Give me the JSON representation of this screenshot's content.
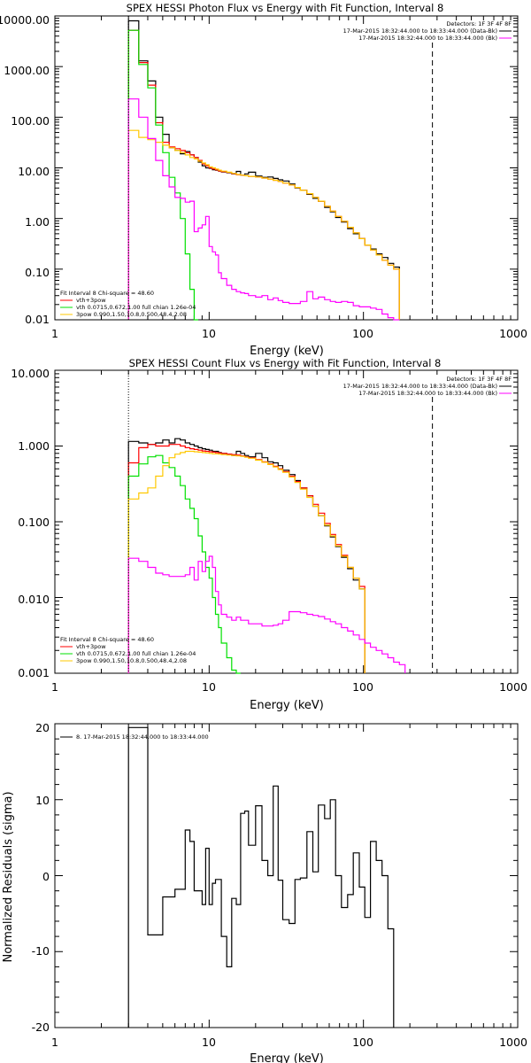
{
  "chart_data": [
    {
      "type": "line",
      "title": "SPEX HESSI Photon Flux vs Energy with Fit Function, Interval 8",
      "xlabel": "Energy (keV)",
      "ylabel": "",
      "xscale": "log",
      "yscale": "log",
      "xlim": [
        1,
        1000
      ],
      "ylim": [
        0.01,
        10000
      ],
      "xticks": [
        "1",
        "10",
        "100",
        "1000"
      ],
      "yticks": [
        "0.01",
        "0.10",
        "1.00",
        "10.00",
        "100.00",
        "1000.00",
        "10000.00"
      ],
      "legend_top_right": [
        "Detectors: 1F 3F 4F 8F",
        "17-Mar-2015 18:32:44.000 to 18:33:44.000 (Data-Bk)",
        "17-Mar-2015 18:32:44.000 to 18:33:44.000 (Bk)"
      ],
      "legend_bottom_left": [
        "Fit Interval 8   Chi-square = 48.60",
        "vth+3pow",
        "vth 0.0715,0.672,1.00  full chian 1.26e-04",
        "3pow 0.990,1.50,10.8,0.500,48.4,2.08"
      ],
      "marker_lines": {
        "x_dotted": 3,
        "x_dashed": 280
      },
      "bin_edges": [
        3,
        3.5,
        4,
        4.5,
        5,
        5.5,
        6,
        6.5,
        7,
        7.5,
        8,
        8.5,
        9,
        9.5,
        10,
        10.5,
        11,
        11.5,
        12,
        13,
        14,
        15,
        16,
        17,
        18,
        20,
        22,
        24,
        26,
        28,
        30,
        33,
        36,
        39,
        43,
        47,
        51,
        56,
        61,
        66,
        72,
        79,
        86,
        94,
        102,
        111,
        121,
        132,
        144,
        157,
        171,
        186,
        202,
        220,
        240,
        262,
        280
      ],
      "series": [
        {
          "color": "#000000",
          "values": [
            8000,
            1300,
            520,
            100,
            46,
            25,
            22,
            19,
            21,
            18,
            16,
            13,
            11,
            10,
            9.8,
            9.2,
            9.0,
            8.6,
            8.3,
            8.0,
            7.6,
            8.5,
            7.2,
            7.6,
            8.2,
            6.9,
            6.5,
            6.6,
            6.2,
            5.8,
            5.5,
            4.8,
            4.0,
            3.6,
            3.0,
            2.5,
            2.2,
            1.65,
            1.35,
            1.05,
            0.85,
            0.63,
            0.5,
            0.4,
            0.3,
            0.25,
            0.2,
            0.17,
            0.13,
            0.11
          ]
        },
        {
          "color": "#ff0000",
          "values": [
            5200,
            1200,
            430,
            78,
            32,
            26,
            24,
            22,
            20,
            18,
            16,
            14,
            12,
            11,
            10,
            9.5,
            9.1,
            8.7,
            8.4,
            8.1,
            7.7,
            7.3,
            7.2,
            7.0,
            6.8,
            6.6,
            6.3,
            6.0,
            5.7,
            5.4,
            5.0,
            4.6,
            4.1,
            3.6,
            3.1,
            2.6,
            2.2,
            1.75,
            1.4,
            1.1,
            0.88,
            0.67,
            0.52,
            0.4,
            0.3,
            0.24,
            0.19,
            0.15,
            0.12,
            0.1
          ]
        },
        {
          "color": "#00e000",
          "values": [
            5200,
            1100,
            380,
            70,
            20,
            6.5,
            3.2,
            1.0,
            0.2,
            0.04,
            0.01
          ]
        },
        {
          "color": "#ffc800",
          "values": [
            55,
            40,
            36,
            32,
            28,
            25,
            22,
            20,
            18,
            16,
            15,
            13.5,
            12.5,
            11.5,
            10.5,
            10,
            9.5,
            9.0,
            8.6,
            8.2,
            7.8,
            7.4,
            7.2,
            7.0,
            6.8,
            6.6,
            6.3,
            6.0,
            5.7,
            5.4,
            5.0,
            4.6,
            4.1,
            3.6,
            3.1,
            2.6,
            2.2,
            1.75,
            1.4,
            1.1,
            0.88,
            0.67,
            0.52,
            0.4,
            0.3,
            0.24,
            0.19,
            0.15,
            0.12,
            0.1
          ]
        },
        {
          "color": "#ff00ff",
          "values": [
            230,
            100,
            38,
            14,
            7,
            4.2,
            2.6,
            2.5,
            2.1,
            2.2,
            0.55,
            0.65,
            0.75,
            1.1,
            0.28,
            0.22,
            0.19,
            0.085,
            0.065,
            0.048,
            0.04,
            0.036,
            0.034,
            0.033,
            0.03,
            0.028,
            0.03,
            0.025,
            0.027,
            0.024,
            0.022,
            0.021,
            0.021,
            0.023,
            0.036,
            0.026,
            0.028,
            0.025,
            0.023,
            0.022,
            0.023,
            0.022,
            0.019,
            0.018,
            0.018,
            0.017,
            0.016,
            0.013,
            0.011,
            0.01
          ]
        }
      ]
    },
    {
      "type": "line",
      "title": "SPEX HESSI Count Flux vs Energy with Fit Function, Interval 8",
      "xlabel": "Energy (keV)",
      "ylabel": "",
      "xscale": "log",
      "yscale": "log",
      "xlim": [
        1,
        1000
      ],
      "ylim": [
        0.001,
        10
      ],
      "xticks": [
        "1",
        "10",
        "100",
        "1000"
      ],
      "yticks": [
        "0.001",
        "0.010",
        "0.100",
        "1.000",
        "10.000"
      ],
      "legend_top_right": [
        "Detectors: 1F 3F 4F 8F",
        "17-Mar-2015 18:32:44.000 to 18:33:44.000 (Data-Bk)",
        "17-Mar-2015 18:32:44.000 to 18:33:44.000 (Bk)"
      ],
      "legend_bottom_left": [
        "Fit Interval 8   Chi-square = 48.60",
        "vth+3pow",
        "vth 0.0715,0.672,1.00  full chian 1.26e-04",
        "3pow 0.990,1.50,10.8,0.500,48.4,2.08"
      ],
      "marker_lines": {
        "x_dotted": 3,
        "x_dashed": 280
      },
      "bin_edges": [
        3,
        3.5,
        4,
        4.5,
        5,
        5.5,
        6,
        6.5,
        7,
        7.5,
        8,
        8.5,
        9,
        9.5,
        10,
        10.5,
        11,
        11.5,
        12,
        13,
        14,
        15,
        16,
        17,
        18,
        20,
        22,
        24,
        26,
        28,
        30,
        33,
        36,
        39,
        43,
        47,
        51,
        56,
        61,
        66,
        72,
        79,
        86,
        94,
        102,
        111,
        121,
        132,
        144,
        157,
        171,
        186,
        202,
        220,
        240,
        262,
        280
      ],
      "series": [
        {
          "color": "#000000",
          "values": [
            1.15,
            1.1,
            1.05,
            1.1,
            1.2,
            1.1,
            1.25,
            1.2,
            1.1,
            1.05,
            1.0,
            0.95,
            0.92,
            0.9,
            0.88,
            0.85,
            0.85,
            0.82,
            0.8,
            0.78,
            0.75,
            0.85,
            0.8,
            0.75,
            0.72,
            0.8,
            0.7,
            0.62,
            0.6,
            0.55,
            0.48,
            0.42,
            0.35,
            0.28,
            0.22,
            0.16,
            0.12,
            0.088,
            0.063,
            0.047,
            0.034,
            0.024,
            0.017,
            0.013
          ]
        },
        {
          "color": "#ff0000",
          "values": [
            0.6,
            0.95,
            1.05,
            1.0,
            1.0,
            1.05,
            1.05,
            1.0,
            0.95,
            0.92,
            0.9,
            0.88,
            0.86,
            0.85,
            0.84,
            0.83,
            0.82,
            0.81,
            0.8,
            0.78,
            0.77,
            0.76,
            0.74,
            0.72,
            0.7,
            0.66,
            0.62,
            0.58,
            0.54,
            0.5,
            0.46,
            0.4,
            0.34,
            0.28,
            0.22,
            0.17,
            0.13,
            0.095,
            0.068,
            0.05,
            0.036,
            0.025,
            0.018,
            0.014
          ]
        },
        {
          "color": "#00e000",
          "values": [
            0.4,
            0.58,
            0.72,
            0.75,
            0.6,
            0.52,
            0.4,
            0.3,
            0.2,
            0.15,
            0.11,
            0.065,
            0.04,
            0.025,
            0.018,
            0.01,
            0.006,
            0.004,
            0.0025,
            0.0016,
            0.0011,
            0.0008
          ]
        },
        {
          "color": "#ffc800",
          "values": [
            0.2,
            0.24,
            0.28,
            0.4,
            0.55,
            0.7,
            0.78,
            0.82,
            0.85,
            0.85,
            0.84,
            0.83,
            0.82,
            0.81,
            0.8,
            0.79,
            0.79,
            0.78,
            0.77,
            0.76,
            0.75,
            0.74,
            0.73,
            0.71,
            0.69,
            0.65,
            0.61,
            0.57,
            0.53,
            0.49,
            0.45,
            0.39,
            0.33,
            0.27,
            0.21,
            0.16,
            0.12,
            0.09,
            0.065,
            0.048,
            0.035,
            0.025,
            0.018,
            0.013
          ]
        },
        {
          "color": "#ff00ff",
          "values": [
            0.033,
            0.03,
            0.025,
            0.021,
            0.02,
            0.019,
            0.019,
            0.019,
            0.02,
            0.025,
            0.017,
            0.03,
            0.022,
            0.03,
            0.035,
            0.025,
            0.012,
            0.008,
            0.006,
            0.0055,
            0.005,
            0.0055,
            0.005,
            0.005,
            0.0045,
            0.0045,
            0.0042,
            0.0042,
            0.0043,
            0.0045,
            0.005,
            0.0065,
            0.0065,
            0.0063,
            0.006,
            0.0058,
            0.0056,
            0.0052,
            0.0048,
            0.0045,
            0.004,
            0.0036,
            0.0032,
            0.0028,
            0.0025,
            0.0022,
            0.002,
            0.0018,
            0.0016,
            0.0014,
            0.0013
          ]
        }
      ]
    },
    {
      "type": "line",
      "title": "",
      "xlabel": "Energy (keV)",
      "ylabel": "Normalized Residuals (sigma)",
      "xscale": "log",
      "yscale": "linear",
      "xlim": [
        1,
        1000
      ],
      "ylim": [
        -20,
        20
      ],
      "xticks": [
        "1",
        "10",
        "100",
        "1000"
      ],
      "yticks": [
        "-20",
        "-10",
        "0",
        "10",
        "20"
      ],
      "legend_top_left": [
        "8. 17-Mar-2015 18:32:44.000 to 18:33:44.000"
      ],
      "bin_edges": [
        3,
        4,
        5,
        6,
        7,
        7.5,
        8,
        9,
        9.5,
        10,
        10.5,
        11,
        12,
        13,
        14,
        15,
        16,
        17,
        18,
        20,
        22,
        24,
        26,
        28,
        30,
        33,
        36,
        39,
        43,
        47,
        51,
        56,
        61,
        66,
        72,
        79,
        86,
        94,
        102,
        111,
        121,
        132,
        144,
        157,
        171,
        186,
        202,
        220,
        240,
        262,
        280
      ],
      "series": [
        {
          "color": "#000000",
          "values": [
            19.5,
            -7.8,
            -2.8,
            -1.8,
            6.0,
            4.5,
            -2.0,
            -3.8,
            3.6,
            -3.8,
            -1.0,
            -0.5,
            -8.0,
            -12.0,
            -3.0,
            -3.8,
            8.2,
            8.5,
            4.0,
            9.2,
            2.0,
            0.0,
            11.8,
            -0.6,
            -5.8,
            -6.3,
            -0.5,
            -0.3,
            5.8,
            0.5,
            9.3,
            7.5,
            10.0,
            0.0,
            -4.2,
            -2.5,
            3.0,
            -1.5,
            -5.5,
            4.5,
            2.0,
            0.0,
            -7.0
          ]
        }
      ]
    }
  ]
}
